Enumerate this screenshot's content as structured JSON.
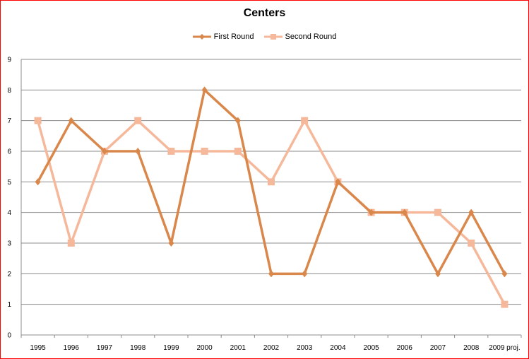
{
  "chart_data": {
    "type": "line",
    "title": "Centers",
    "categories": [
      "1995",
      "1996",
      "1997",
      "1998",
      "1999",
      "2000",
      "2001",
      "2002",
      "2003",
      "2004",
      "2005",
      "2006",
      "2007",
      "2008",
      "2009 proj."
    ],
    "series": [
      {
        "name": "First Round",
        "color": "#D9874A",
        "marker": "diamond",
        "values": [
          5,
          7,
          6,
          6,
          3,
          8,
          7,
          2,
          2,
          5,
          4,
          4,
          2,
          4,
          2
        ]
      },
      {
        "name": "Second Round",
        "color": "#F6B89A",
        "marker": "square",
        "values": [
          7,
          3,
          6,
          7,
          6,
          6,
          6,
          5,
          7,
          5,
          4,
          4,
          4,
          3,
          1
        ]
      }
    ],
    "ylim": [
      0,
      9
    ],
    "yticks": [
      0,
      1,
      2,
      3,
      4,
      5,
      6,
      7,
      8,
      9
    ],
    "grid": true,
    "legend_position": "top"
  }
}
